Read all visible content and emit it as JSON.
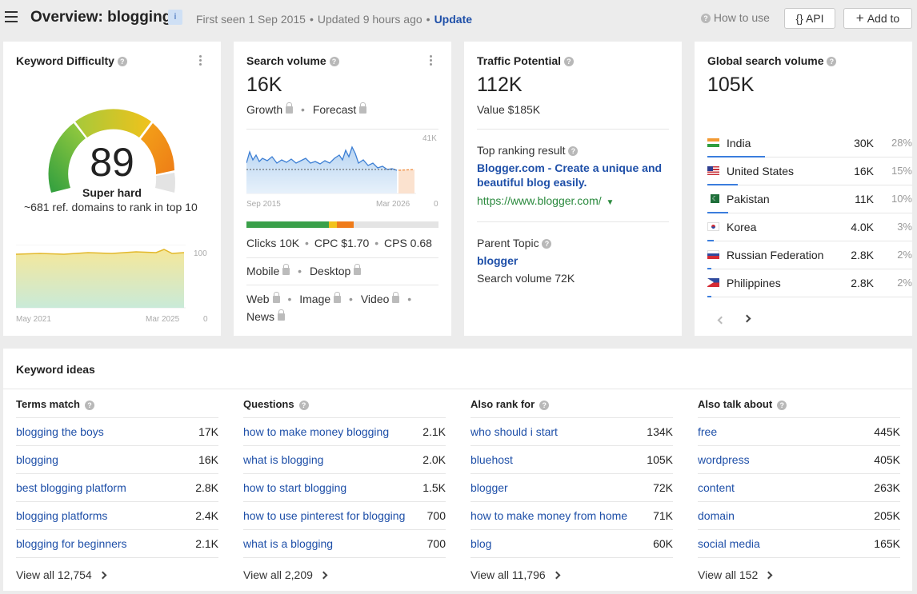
{
  "header": {
    "title": "Overview: blogging",
    "badge": "i",
    "first_seen": "First seen 1 Sep 2015",
    "updated": "Updated 9 hours ago",
    "update_link": "Update",
    "how_to_use": "How to use",
    "api_button": "{} API",
    "add_to_button": "Add to"
  },
  "keyword_difficulty": {
    "title": "Keyword Difficulty",
    "score": "89",
    "label": "Super hard",
    "note": "~681 ref. domains to rank in top 10",
    "chart_top_tick": "100",
    "chart_bottom_tick": "0",
    "x_start": "May 2021",
    "x_end": "Mar 2025"
  },
  "search_volume": {
    "title": "Search volume",
    "value": "16K",
    "growth": "Growth",
    "forecast": "Forecast",
    "chart_top_tick": "41K",
    "chart_bottom_tick": "0",
    "x_start": "Sep 2015",
    "x_end": "Mar 2026",
    "intent_segments": [
      {
        "color": "#3aa04a",
        "share": 0.43
      },
      {
        "color": "#f2c21b",
        "share": 0.04
      },
      {
        "color": "#ef7b1a",
        "share": 0.09
      },
      {
        "color": "#e4e4e4",
        "share": 0.44
      }
    ],
    "clicks": "Clicks 10K",
    "cpc": "CPC $1.70",
    "cps": "CPS 0.68",
    "mobile": "Mobile",
    "desktop": "Desktop",
    "web": "Web",
    "image": "Image",
    "video": "Video",
    "news": "News"
  },
  "traffic_potential": {
    "title": "Traffic Potential",
    "value": "112K",
    "value_usd": "Value $185K",
    "top_ranking_label": "Top ranking result",
    "top_ranking_title": "Blogger.com - Create a unique and beautiful blog easily.",
    "top_ranking_url": "https://www.blogger.com/",
    "parent_topic_label": "Parent Topic",
    "parent_topic": "blogger",
    "parent_volume": "Search volume 72K"
  },
  "global_volume": {
    "title": "Global search volume",
    "value": "105K",
    "countries": [
      {
        "name": "India",
        "value": "30K",
        "pct": "28%",
        "share": 0.28,
        "flag": "in-flag"
      },
      {
        "name": "United States",
        "value": "16K",
        "pct": "15%",
        "share": 0.15,
        "flag": "us-flag"
      },
      {
        "name": "Pakistan",
        "value": "11K",
        "pct": "10%",
        "share": 0.1,
        "flag": "pk-flag"
      },
      {
        "name": "Korea",
        "value": "4.0K",
        "pct": "3%",
        "share": 0.03,
        "flag": "kr-flag"
      },
      {
        "name": "Russian Federation",
        "value": "2.8K",
        "pct": "2%",
        "share": 0.02,
        "flag": "ru-flag"
      },
      {
        "name": "Philippines",
        "value": "2.8K",
        "pct": "2%",
        "share": 0.02,
        "flag": "ph-flag"
      }
    ]
  },
  "keyword_ideas": {
    "title": "Keyword ideas",
    "columns": [
      {
        "heading": "Terms match",
        "rows": [
          {
            "term": "blogging the boys",
            "value": "17K"
          },
          {
            "term": "blogging",
            "value": "16K"
          },
          {
            "term": "best blogging platform",
            "value": "2.8K"
          },
          {
            "term": "blogging platforms",
            "value": "2.4K"
          },
          {
            "term": "blogging for beginners",
            "value": "2.1K"
          }
        ],
        "view_all": "View all 12,754"
      },
      {
        "heading": "Questions",
        "rows": [
          {
            "term": "how to make money blogging",
            "value": "2.1K"
          },
          {
            "term": "what is blogging",
            "value": "2.0K"
          },
          {
            "term": "how to start blogging",
            "value": "1.5K"
          },
          {
            "term": "how to use pinterest for blogging",
            "value": "700"
          },
          {
            "term": "what is a blogging",
            "value": "700"
          }
        ],
        "view_all": "View all 2,209"
      },
      {
        "heading": "Also rank for",
        "rows": [
          {
            "term": "who should i start",
            "value": "134K"
          },
          {
            "term": "bluehost",
            "value": "105K"
          },
          {
            "term": "blogger",
            "value": "72K"
          },
          {
            "term": "how to make money from home",
            "value": "71K"
          },
          {
            "term": "blog",
            "value": "60K"
          }
        ],
        "view_all": "View all 11,796"
      },
      {
        "heading": "Also talk about",
        "rows": [
          {
            "term": "free",
            "value": "445K"
          },
          {
            "term": "wordpress",
            "value": "405K"
          },
          {
            "term": "content",
            "value": "263K"
          },
          {
            "term": "domain",
            "value": "205K"
          },
          {
            "term": "social media",
            "value": "165K"
          }
        ],
        "view_all": "View all 152"
      }
    ]
  }
}
